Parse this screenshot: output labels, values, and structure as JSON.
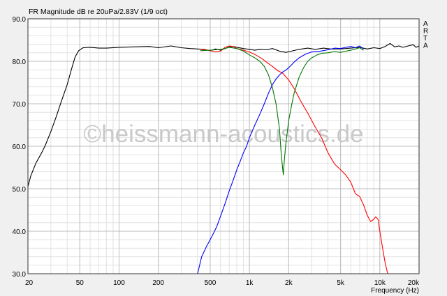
{
  "chart_data": {
    "type": "line",
    "title": "FR Magnitude dB re 20uPa/2.83V (1/9 oct)",
    "xlabel": "Frequency (Hz)",
    "ylabel": "",
    "x_scale": "log",
    "xlim": [
      20,
      20000
    ],
    "ylim": [
      30,
      90
    ],
    "grid": true,
    "legend": "none",
    "watermark": "©heissmann-acoustics.de",
    "side_label": [
      "A",
      "R",
      "T",
      "A"
    ],
    "x_ticks": [
      {
        "value": 20,
        "label": "20"
      },
      {
        "value": 50,
        "label": "50"
      },
      {
        "value": 100,
        "label": "100"
      },
      {
        "value": 200,
        "label": "200"
      },
      {
        "value": 500,
        "label": "500"
      },
      {
        "value": 1000,
        "label": "1k"
      },
      {
        "value": 2000,
        "label": "2k"
      },
      {
        "value": 5000,
        "label": "5k"
      },
      {
        "value": 10000,
        "label": "10k"
      },
      {
        "value": 20000,
        "label": "20k"
      }
    ],
    "y_ticks": [
      {
        "value": 30,
        "label": "30.0"
      },
      {
        "value": 40,
        "label": "40.0"
      },
      {
        "value": 50,
        "label": "50.0"
      },
      {
        "value": 60,
        "label": "60.0"
      },
      {
        "value": 70,
        "label": "70.0"
      },
      {
        "value": 80,
        "label": "80.0"
      },
      {
        "value": 90,
        "label": "90.0"
      }
    ],
    "series": [
      {
        "color": "#000000",
        "points": [
          [
            20,
            50.5
          ],
          [
            21,
            53
          ],
          [
            23,
            56
          ],
          [
            25,
            58
          ],
          [
            27,
            60
          ],
          [
            30,
            63.5
          ],
          [
            33,
            67
          ],
          [
            36,
            70.5
          ],
          [
            40,
            74.5
          ],
          [
            43,
            78
          ],
          [
            46,
            81
          ],
          [
            49,
            82.5
          ],
          [
            53,
            83.2
          ],
          [
            60,
            83.3
          ],
          [
            70,
            83.1
          ],
          [
            80,
            83.1
          ],
          [
            100,
            83.3
          ],
          [
            130,
            83.4
          ],
          [
            170,
            83.5
          ],
          [
            200,
            83.2
          ],
          [
            250,
            83.6
          ],
          [
            300,
            83.2
          ],
          [
            350,
            83.0
          ],
          [
            400,
            82.9
          ],
          [
            450,
            82.8
          ],
          [
            500,
            82.5
          ],
          [
            550,
            82.9
          ],
          [
            600,
            82.6
          ],
          [
            650,
            83.0
          ],
          [
            700,
            83.4
          ],
          [
            750,
            83.5
          ],
          [
            800,
            83.3
          ],
          [
            900,
            83.0
          ],
          [
            1000,
            82.8
          ],
          [
            1100,
            82.6
          ],
          [
            1200,
            82.8
          ],
          [
            1350,
            82.7
          ],
          [
            1500,
            83.0
          ],
          [
            1700,
            82.4
          ],
          [
            1900,
            82.1
          ],
          [
            2100,
            82.4
          ],
          [
            2400,
            82.8
          ],
          [
            2800,
            83.1
          ],
          [
            3200,
            82.8
          ],
          [
            3700,
            83.1
          ],
          [
            4200,
            82.9
          ],
          [
            5000,
            82.9
          ],
          [
            6000,
            83.1
          ],
          [
            7000,
            83.3
          ],
          [
            8000,
            82.9
          ],
          [
            9000,
            83.2
          ],
          [
            10000,
            83.0
          ],
          [
            11000,
            83.5
          ],
          [
            12000,
            84.2
          ],
          [
            13000,
            83.4
          ],
          [
            14000,
            83.6
          ],
          [
            15000,
            83.3
          ],
          [
            16500,
            83.6
          ],
          [
            18000,
            83.9
          ],
          [
            19000,
            83.3
          ],
          [
            20000,
            83.6
          ]
        ]
      },
      {
        "color": "#ff0000",
        "points": [
          [
            420,
            82.8
          ],
          [
            480,
            82.6
          ],
          [
            550,
            82.2
          ],
          [
            600,
            82.4
          ],
          [
            650,
            83.3
          ],
          [
            700,
            83.6
          ],
          [
            750,
            83.5
          ],
          [
            800,
            83.0
          ],
          [
            900,
            82.6
          ],
          [
            1000,
            82.2
          ],
          [
            1100,
            81.6
          ],
          [
            1250,
            80.6
          ],
          [
            1350,
            79.8
          ],
          [
            1500,
            78.8
          ],
          [
            1650,
            77.8
          ],
          [
            1800,
            77.2
          ],
          [
            2000,
            75.6
          ],
          [
            2200,
            73.6
          ],
          [
            2500,
            70.4
          ],
          [
            2800,
            67.8
          ],
          [
            3200,
            64.5
          ],
          [
            3600,
            61.8
          ],
          [
            4000,
            58.5
          ],
          [
            4500,
            55.8
          ],
          [
            5000,
            54.5
          ],
          [
            5500,
            53.2
          ],
          [
            6000,
            51.5
          ],
          [
            6500,
            48.8
          ],
          [
            7000,
            48.2
          ],
          [
            7500,
            46.2
          ],
          [
            8000,
            43.8
          ],
          [
            8500,
            42.3
          ],
          [
            8900,
            42.7
          ],
          [
            9300,
            43.4
          ],
          [
            9700,
            42.8
          ],
          [
            10000,
            40.0
          ],
          [
            10500,
            36.0
          ],
          [
            11000,
            32.5
          ],
          [
            11500,
            30.0
          ]
        ]
      },
      {
        "color": "#007700",
        "points": [
          [
            420,
            82.5
          ],
          [
            500,
            82.6
          ],
          [
            600,
            82.8
          ],
          [
            650,
            83.0
          ],
          [
            700,
            83.3
          ],
          [
            800,
            83.0
          ],
          [
            900,
            82.4
          ],
          [
            1000,
            81.5
          ],
          [
            1100,
            80.8
          ],
          [
            1200,
            80.0
          ],
          [
            1300,
            78.8
          ],
          [
            1400,
            76.8
          ],
          [
            1500,
            73.8
          ],
          [
            1600,
            70.0
          ],
          [
            1700,
            64.0
          ],
          [
            1750,
            58.5
          ],
          [
            1800,
            54.5
          ],
          [
            1820,
            53.3
          ],
          [
            1850,
            56.5
          ],
          [
            1900,
            60.5
          ],
          [
            2000,
            66.0
          ],
          [
            2100,
            69.5
          ],
          [
            2200,
            72.5
          ],
          [
            2400,
            76.2
          ],
          [
            2600,
            78.5
          ],
          [
            2800,
            80.0
          ],
          [
            3000,
            80.8
          ],
          [
            3300,
            81.5
          ],
          [
            3600,
            81.9
          ],
          [
            4000,
            82.0
          ],
          [
            4500,
            82.3
          ],
          [
            5000,
            82.1
          ],
          [
            5500,
            82.4
          ],
          [
            6000,
            82.6
          ],
          [
            6500,
            82.9
          ],
          [
            7000,
            83.2
          ],
          [
            7500,
            82.6
          ]
        ]
      },
      {
        "color": "#0000ff",
        "points": [
          [
            400,
            30.0
          ],
          [
            430,
            34.0
          ],
          [
            470,
            36.5
          ],
          [
            520,
            39.0
          ],
          [
            560,
            41.0
          ],
          [
            600,
            43.5
          ],
          [
            650,
            46.5
          ],
          [
            700,
            49.5
          ],
          [
            750,
            52.0
          ],
          [
            800,
            54.5
          ],
          [
            850,
            56.5
          ],
          [
            900,
            58.5
          ],
          [
            950,
            60.0
          ],
          [
            1000,
            62.0
          ],
          [
            1100,
            65.0
          ],
          [
            1200,
            67.5
          ],
          [
            1300,
            70.0
          ],
          [
            1400,
            72.5
          ],
          [
            1500,
            74.5
          ],
          [
            1600,
            75.8
          ],
          [
            1700,
            76.8
          ],
          [
            1800,
            77.5
          ],
          [
            1900,
            77.9
          ],
          [
            2000,
            78.5
          ],
          [
            2200,
            79.8
          ],
          [
            2400,
            80.8
          ],
          [
            2700,
            81.7
          ],
          [
            3000,
            82.2
          ],
          [
            3500,
            82.4
          ],
          [
            4000,
            82.7
          ],
          [
            4500,
            83.1
          ],
          [
            5000,
            83.0
          ],
          [
            5500,
            83.3
          ],
          [
            6000,
            83.5
          ],
          [
            6500,
            83.2
          ],
          [
            7000,
            83.6
          ],
          [
            7500,
            82.9
          ]
        ]
      }
    ]
  }
}
